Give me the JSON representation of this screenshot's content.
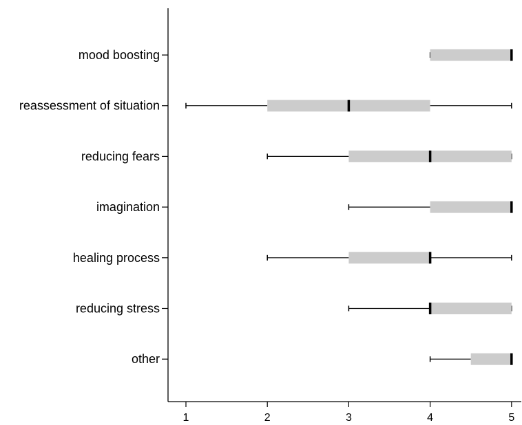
{
  "chart_data": {
    "type": "boxplot",
    "orientation": "horizontal",
    "categories": [
      "mood boosting",
      "reassessment of situation",
      "reducing fears",
      "imagination",
      "healing process",
      "reducing stress",
      "other"
    ],
    "boxes": [
      {
        "label": "mood boosting",
        "min": 4,
        "q1": 4,
        "median": 5,
        "q3": 5,
        "max": 5
      },
      {
        "label": "reassessment of situation",
        "min": 1,
        "q1": 2,
        "median": 3,
        "q3": 4,
        "max": 5
      },
      {
        "label": "reducing fears",
        "min": 2,
        "q1": 3,
        "median": 4,
        "q3": 5,
        "max": 5
      },
      {
        "label": "imagination",
        "min": 3,
        "q1": 4,
        "median": 5,
        "q3": 5,
        "max": 5
      },
      {
        "label": "healing process",
        "min": 2,
        "q1": 3,
        "median": 4,
        "q3": 4,
        "max": 5
      },
      {
        "label": "reducing stress",
        "min": 3,
        "q1": 4,
        "median": 4,
        "q3": 5,
        "max": 5
      },
      {
        "label": "other",
        "min": 4,
        "q1": 4.5,
        "median": 5,
        "q3": 5,
        "max": 5
      }
    ],
    "xticks": [
      1,
      2,
      3,
      4,
      5
    ],
    "xlim": [
      0.78,
      5.12
    ],
    "title": "",
    "xlabel": "",
    "ylabel": "",
    "grid": false,
    "box_color": "#cccccc",
    "line_color": "#000000"
  }
}
